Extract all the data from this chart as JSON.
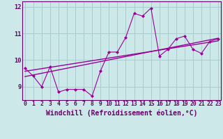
{
  "xlabel": "Windchill (Refroidissement éolien,°C)",
  "x": [
    0,
    1,
    2,
    3,
    4,
    5,
    6,
    7,
    8,
    9,
    10,
    11,
    12,
    13,
    14,
    15,
    16,
    17,
    18,
    19,
    20,
    21,
    22,
    23
  ],
  "y_main": [
    9.7,
    9.4,
    9.0,
    9.75,
    8.8,
    8.9,
    8.9,
    8.9,
    8.65,
    9.6,
    10.3,
    10.3,
    10.85,
    11.75,
    11.65,
    11.95,
    10.15,
    10.4,
    10.8,
    10.9,
    10.4,
    10.25,
    10.7,
    10.8
  ],
  "trend1_x": [
    0,
    23
  ],
  "trend1_y": [
    9.58,
    10.72
  ],
  "trend2_x": [
    0,
    23
  ],
  "trend2_y": [
    9.38,
    10.82
  ],
  "line_color": "#990099",
  "bg_color": "#cce8e8",
  "grid_color": "#aacccc",
  "ylim": [
    8.5,
    12.2
  ],
  "xlim": [
    -0.3,
    23.3
  ],
  "yticks": [
    9,
    10,
    11,
    12
  ],
  "xticks": [
    0,
    1,
    2,
    3,
    4,
    5,
    6,
    7,
    8,
    9,
    10,
    11,
    12,
    13,
    14,
    15,
    16,
    17,
    18,
    19,
    20,
    21,
    22,
    23
  ],
  "tick_fontsize": 5.8,
  "xlabel_fontsize": 7.0,
  "axis_color": "#660066",
  "marker_size": 2.5
}
